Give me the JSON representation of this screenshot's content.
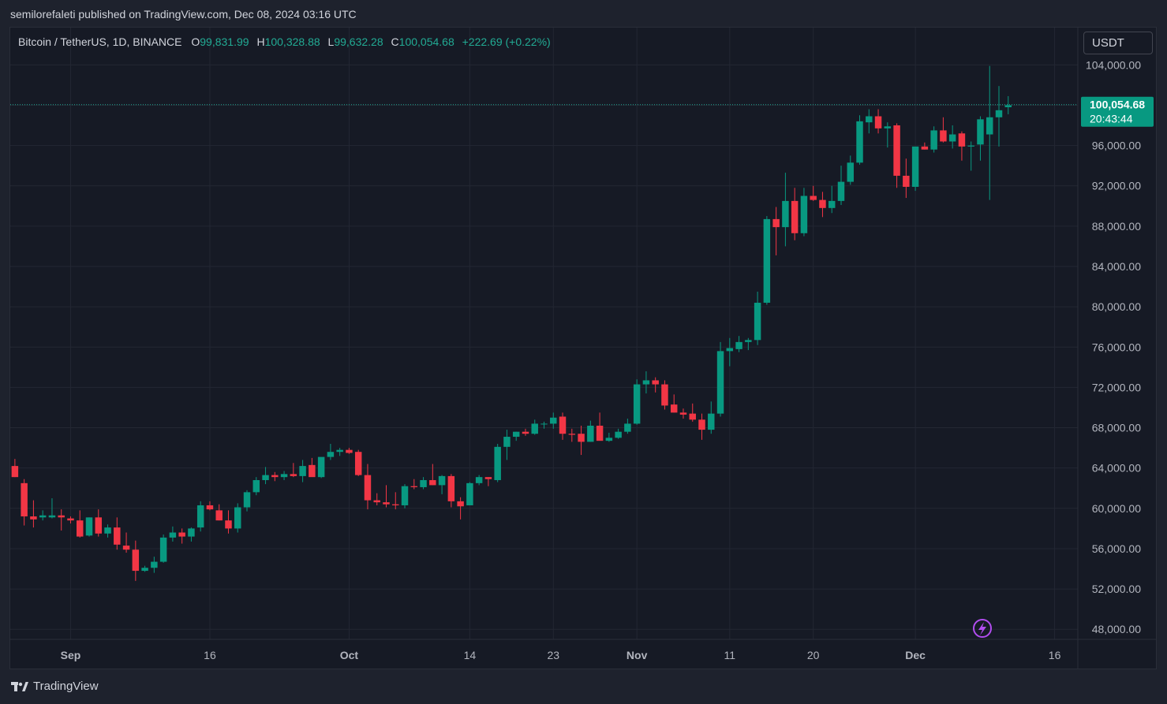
{
  "header": {
    "publish_line": "semilorefaleti published on TradingView.com, Dec 08, 2024 03:16 UTC"
  },
  "legend": {
    "symbol": "Bitcoin / TetherUS, 1D, BINANCE",
    "open_key": "O",
    "open": "99,831.99",
    "high_key": "H",
    "high": "100,328.88",
    "low_key": "L",
    "low": "99,632.28",
    "close_key": "C",
    "close": "100,054.68",
    "change": "+222.69 (+0.22%)"
  },
  "currency_button": "USDT",
  "price_badge": {
    "price": "100,054.68",
    "countdown": "20:43:44"
  },
  "footer": {
    "brand": "TradingView"
  },
  "colors": {
    "up": "#089981",
    "down": "#f23645",
    "background": "#161a25",
    "grid": "#232733",
    "text": "#b2b5be",
    "price_line": "#22ab94"
  },
  "chart_data": {
    "type": "candlestick",
    "y_axis": {
      "ticks": [
        48000,
        52000,
        56000,
        60000,
        64000,
        68000,
        72000,
        76000,
        80000,
        84000,
        88000,
        92000,
        96000,
        100000,
        104000
      ],
      "tick_labels": [
        "48,000.00",
        "52,000.00",
        "56,000.00",
        "60,000.00",
        "64,000.00",
        "68,000.00",
        "72,000.00",
        "76,000.00",
        "80,000.00",
        "84,000.00",
        "88,000.00",
        "92,000.00",
        "96,000.00",
        "",
        "104,000.00"
      ],
      "ylim": [
        47000,
        107700
      ]
    },
    "x_axis": {
      "labels": [
        {
          "label": "Sep",
          "index": 6
        },
        {
          "label": "16",
          "index": 21
        },
        {
          "label": "Oct",
          "index": 36
        },
        {
          "label": "14",
          "index": 49
        },
        {
          "label": "23",
          "index": 58
        },
        {
          "label": "Nov",
          "index": 67
        },
        {
          "label": "11",
          "index": 77
        },
        {
          "label": "20",
          "index": 86
        },
        {
          "label": "Dec",
          "index": 97
        },
        {
          "label": "16",
          "index": 112
        }
      ],
      "xlim": [
        -0.5,
        114.5
      ]
    },
    "last_price": 100054.68,
    "candles": [
      [
        64200,
        64900,
        63100,
        63100
      ],
      [
        62500,
        62900,
        58300,
        59200
      ],
      [
        59200,
        60800,
        58100,
        58900
      ],
      [
        59100,
        59800,
        58800,
        59300
      ],
      [
        59100,
        61000,
        59000,
        59300
      ],
      [
        59300,
        59900,
        57800,
        59100
      ],
      [
        59000,
        59200,
        58500,
        58800
      ],
      [
        58800,
        59800,
        57100,
        57200
      ],
      [
        57300,
        59100,
        57200,
        59100
      ],
      [
        59100,
        59900,
        57200,
        57500
      ],
      [
        57500,
        58400,
        57100,
        58100
      ],
      [
        58100,
        59100,
        55900,
        56400
      ],
      [
        56300,
        57600,
        55600,
        55900
      ],
      [
        55900,
        56800,
        52800,
        53800
      ],
      [
        53800,
        54300,
        53700,
        54100
      ],
      [
        54100,
        55200,
        53600,
        54700
      ],
      [
        54700,
        57400,
        54600,
        57100
      ],
      [
        57100,
        58200,
        56700,
        57600
      ],
      [
        57600,
        58000,
        56500,
        57200
      ],
      [
        57200,
        58100,
        56700,
        58000
      ],
      [
        58100,
        60700,
        57700,
        60300
      ],
      [
        60300,
        60700,
        59800,
        59900
      ],
      [
        59800,
        60400,
        58800,
        58800
      ],
      [
        58800,
        59800,
        57500,
        58000
      ],
      [
        58000,
        60500,
        57600,
        60100
      ],
      [
        60100,
        61800,
        59700,
        61600
      ],
      [
        61600,
        63100,
        61300,
        62800
      ],
      [
        62800,
        64100,
        62400,
        63300
      ],
      [
        63300,
        63600,
        62700,
        63100
      ],
      [
        63100,
        63700,
        62800,
        63400
      ],
      [
        63400,
        64500,
        63100,
        63200
      ],
      [
        63200,
        64800,
        62600,
        64200
      ],
      [
        64300,
        65000,
        63200,
        63100
      ],
      [
        63100,
        65000,
        63000,
        65100
      ],
      [
        65100,
        66400,
        64800,
        65600
      ],
      [
        65600,
        66000,
        65200,
        65800
      ],
      [
        65800,
        66000,
        65400,
        65500
      ],
      [
        65600,
        65800,
        63200,
        63300
      ],
      [
        63300,
        64400,
        59900,
        60800
      ],
      [
        60800,
        61500,
        60300,
        60600
      ],
      [
        60600,
        62300,
        60100,
        60400
      ],
      [
        60400,
        61600,
        59900,
        60300
      ],
      [
        60300,
        62400,
        60000,
        62200
      ],
      [
        62200,
        62900,
        61900,
        62100
      ],
      [
        62100,
        63100,
        61900,
        62800
      ],
      [
        62800,
        64400,
        62300,
        62300
      ],
      [
        62300,
        63300,
        61400,
        63200
      ],
      [
        63200,
        63400,
        60100,
        60700
      ],
      [
        60700,
        61100,
        58900,
        60200
      ],
      [
        60300,
        62600,
        60300,
        62500
      ],
      [
        62500,
        63300,
        62300,
        63100
      ],
      [
        63100,
        63100,
        62200,
        62900
      ],
      [
        62800,
        66400,
        62600,
        66100
      ],
      [
        66100,
        67800,
        64800,
        67100
      ],
      [
        67100,
        67600,
        66700,
        67600
      ],
      [
        67600,
        67900,
        67200,
        67400
      ],
      [
        67400,
        68800,
        67300,
        68400
      ],
      [
        68400,
        68600,
        67900,
        68400
      ],
      [
        68400,
        69500,
        67900,
        69000
      ],
      [
        69100,
        69500,
        66800,
        67400
      ],
      [
        67400,
        67900,
        66600,
        67300
      ],
      [
        67400,
        68200,
        65300,
        66600
      ],
      [
        66600,
        68700,
        66600,
        68200
      ],
      [
        68200,
        69500,
        66900,
        66700
      ],
      [
        66700,
        67500,
        66600,
        67000
      ],
      [
        67000,
        67900,
        66900,
        67600
      ],
      [
        67600,
        68900,
        67400,
        68400
      ],
      [
        68400,
        72800,
        68300,
        72300
      ],
      [
        72300,
        73600,
        71400,
        72700
      ],
      [
        72700,
        73000,
        71500,
        72300
      ],
      [
        72300,
        72700,
        69800,
        70200
      ],
      [
        70300,
        71300,
        69500,
        69500
      ],
      [
        69500,
        69900,
        68900,
        69300
      ],
      [
        69400,
        70400,
        68600,
        68800
      ],
      [
        68800,
        69400,
        66800,
        67800
      ],
      [
        67800,
        70600,
        67400,
        69400
      ],
      [
        69400,
        76500,
        69100,
        75600
      ],
      [
        75600,
        76900,
        74100,
        75900
      ],
      [
        75800,
        77100,
        75500,
        76500
      ],
      [
        76500,
        76900,
        75700,
        76700
      ],
      [
        76700,
        81500,
        76200,
        80400
      ],
      [
        80400,
        89000,
        80200,
        88700
      ],
      [
        88700,
        89900,
        85100,
        87900
      ],
      [
        87900,
        93300,
        86000,
        90500
      ],
      [
        90500,
        91800,
        86600,
        87300
      ],
      [
        87300,
        91800,
        87000,
        91000
      ],
      [
        91000,
        92000,
        90500,
        90600
      ],
      [
        90600,
        91400,
        88900,
        89800
      ],
      [
        89800,
        92000,
        89300,
        90500
      ],
      [
        90500,
        94000,
        90100,
        92400
      ],
      [
        92400,
        95000,
        92100,
        94300
      ],
      [
        94300,
        99000,
        94100,
        98400
      ],
      [
        98300,
        99600,
        97200,
        98900
      ],
      [
        98900,
        99600,
        97200,
        97700
      ],
      [
        97700,
        98300,
        95800,
        97900
      ],
      [
        98000,
        98200,
        91800,
        93000
      ],
      [
        93000,
        94700,
        90800,
        91900
      ],
      [
        91900,
        95800,
        91500,
        95900
      ],
      [
        95900,
        96300,
        95600,
        95600
      ],
      [
        95600,
        97900,
        95300,
        97500
      ],
      [
        97500,
        98800,
        96300,
        96400
      ],
      [
        96400,
        98000,
        95700,
        97100
      ],
      [
        97200,
        97400,
        94500,
        95900
      ],
      [
        95900,
        96400,
        93500,
        96000
      ],
      [
        96100,
        98900,
        94500,
        98600
      ],
      [
        97100,
        103900,
        90600,
        98800
      ],
      [
        98800,
        101900,
        95900,
        99500
      ],
      [
        99800,
        100900,
        99100,
        100000
      ]
    ]
  }
}
